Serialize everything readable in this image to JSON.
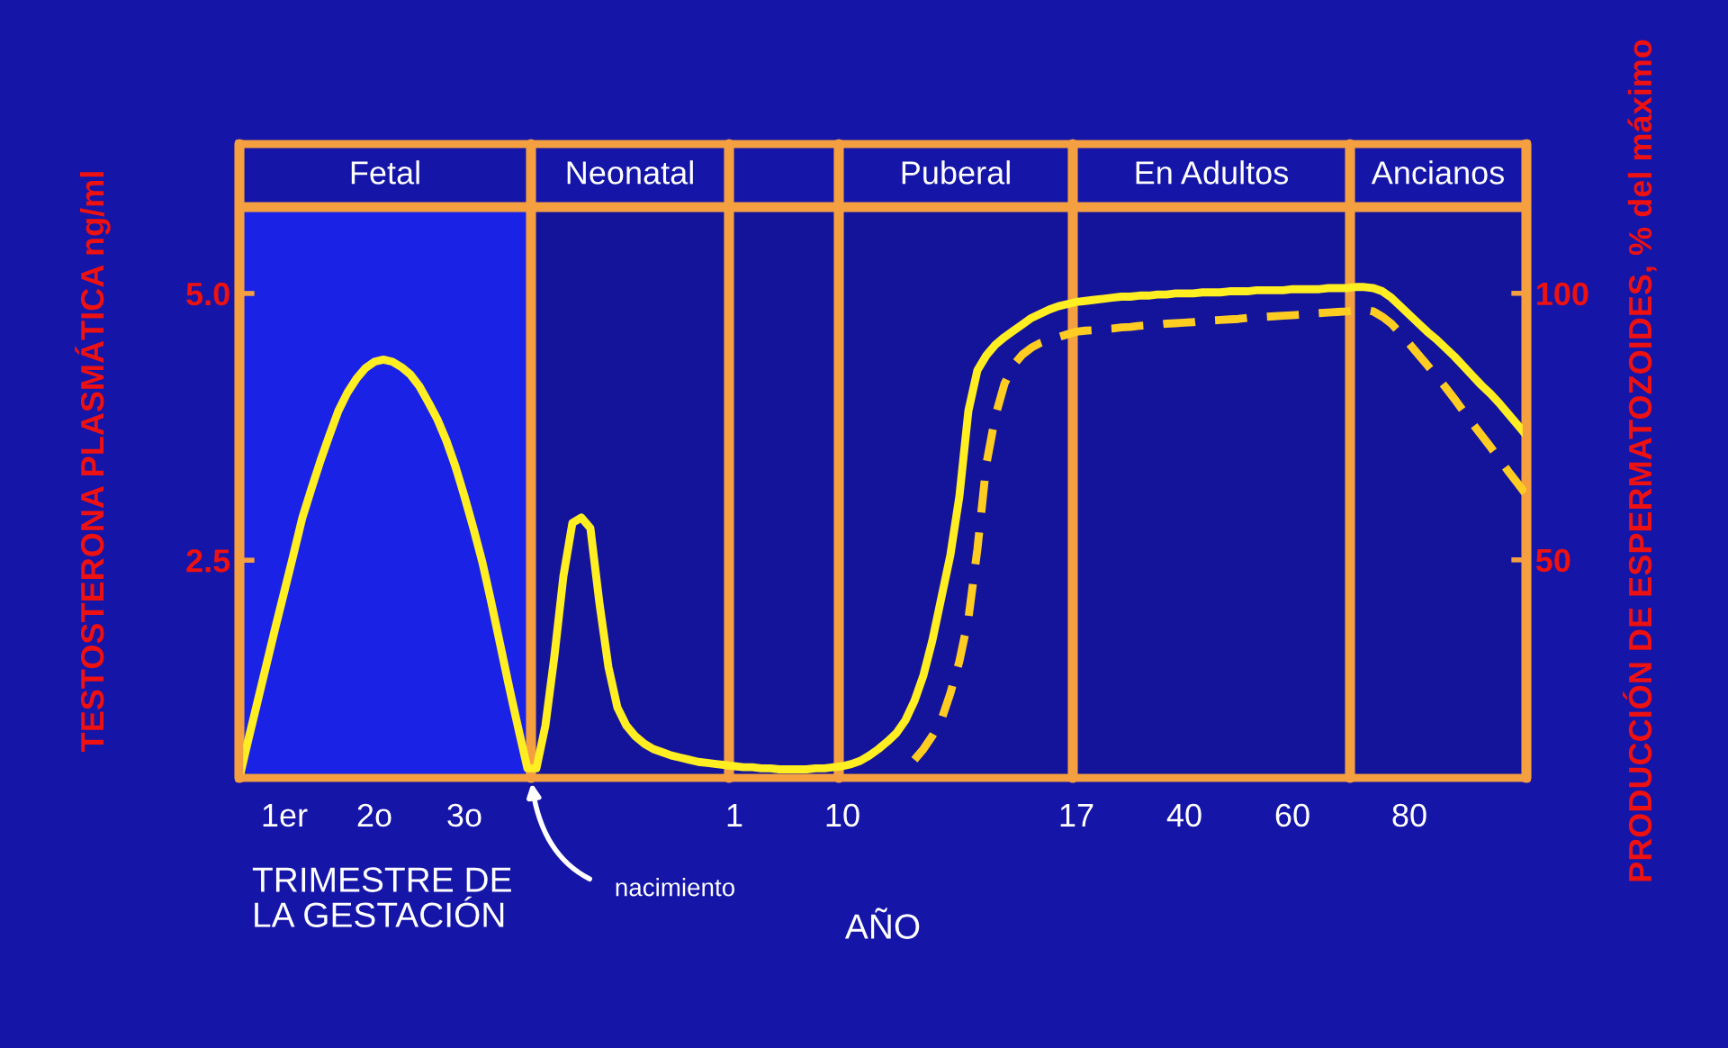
{
  "chart_data": {
    "type": "line",
    "xlabel": "AÑO",
    "ylabel": "TESTOSTERONA PLASMÁTICA ng/ml",
    "y2label": "PRODUCCIÓN DE ESPERMATOZOIDES, % del máximo",
    "categories": [
      null,
      null,
      null,
      null,
      null,
      "1er",
      null,
      null,
      null,
      null,
      null,
      null,
      null,
      null,
      null,
      "2o",
      null,
      null,
      null,
      null,
      null,
      null,
      null,
      null,
      null,
      "3o",
      null,
      null,
      null,
      null,
      null,
      null,
      null,
      null,
      null,
      null,
      null,
      null,
      null,
      null,
      null,
      null,
      null,
      null,
      null,
      null,
      null,
      null,
      null,
      null,
      null,
      null,
      null,
      null,
      null,
      "1",
      null,
      null,
      null,
      null,
      null,
      null,
      null,
      null,
      null,
      null,
      null,
      "10",
      null,
      null,
      null,
      null,
      null,
      null,
      null,
      null,
      null,
      null,
      null,
      null,
      null,
      null,
      null,
      null,
      null,
      null,
      null,
      null,
      null,
      null,
      null,
      null,
      null,
      "17",
      null,
      null,
      null,
      null,
      null,
      null,
      null,
      null,
      null,
      null,
      null,
      "40",
      null,
      null,
      null,
      null,
      null,
      null,
      null,
      null,
      null,
      null,
      null,
      "60",
      null,
      null,
      null,
      null,
      null,
      null,
      null,
      null,
      null,
      null,
      null,
      null,
      "80",
      null,
      null,
      null,
      null,
      null,
      null,
      null,
      null,
      null,
      null,
      null,
      null,
      null
    ],
    "ylim": [
      0.46,
      6.4
    ],
    "yticks": [
      {
        "value": 2.5,
        "label": "2.5"
      },
      {
        "value": 5.0,
        "label": "5.0"
      }
    ],
    "y2lim": [
      9.1,
      128.0
    ],
    "y2ticks": [
      50,
      100
    ],
    "grid": false,
    "legend": false,
    "marker": "none",
    "series": [
      {
        "color": "#ffee22",
        "line_style": "solid",
        "values": [
          0.46,
          0.82,
          1.17,
          1.52,
          1.87,
          2.21,
          2.55,
          2.9,
          3.17,
          3.43,
          3.67,
          3.9,
          4.07,
          4.2,
          4.3,
          4.36,
          4.38,
          4.36,
          4.31,
          4.24,
          4.13,
          3.98,
          3.82,
          3.62,
          3.38,
          3.1,
          2.8,
          2.48,
          2.1,
          1.7,
          1.3,
          0.92,
          0.55,
          0.55,
          0.95,
          1.6,
          2.35,
          2.85,
          2.9,
          2.8,
          2.1,
          1.5,
          1.12,
          0.95,
          0.85,
          0.78,
          0.73,
          0.7,
          0.67,
          0.65,
          0.63,
          0.61,
          0.6,
          0.59,
          0.58,
          0.57,
          0.56,
          0.56,
          0.55,
          0.55,
          0.54,
          0.54,
          0.54,
          0.54,
          0.55,
          0.55,
          0.56,
          0.57,
          0.59,
          0.62,
          0.67,
          0.73,
          0.8,
          0.88,
          1.0,
          1.18,
          1.42,
          1.75,
          2.15,
          2.55,
          3.1,
          3.9,
          4.28,
          4.42,
          4.52,
          4.59,
          4.65,
          4.71,
          4.77,
          4.81,
          4.85,
          4.88,
          4.9,
          4.92,
          4.93,
          4.94,
          4.95,
          4.96,
          4.97,
          4.97,
          4.98,
          4.98,
          4.99,
          4.99,
          5.0,
          5.0,
          5.0,
          5.01,
          5.01,
          5.01,
          5.02,
          5.02,
          5.02,
          5.03,
          5.03,
          5.03,
          5.03,
          5.04,
          5.04,
          5.04,
          5.04,
          5.05,
          5.05,
          5.05,
          5.06,
          5.06,
          5.05,
          5.02,
          4.96,
          4.88,
          4.8,
          4.72,
          4.64,
          4.57,
          4.49,
          4.41,
          4.32,
          4.23,
          4.14,
          4.06,
          3.97,
          3.87,
          3.77,
          3.67
        ]
      },
      {
        "color": "#ffcc22",
        "line_style": "dashed",
        "axis": "y2",
        "values": [
          null,
          null,
          null,
          null,
          null,
          null,
          null,
          null,
          null,
          null,
          null,
          null,
          null,
          null,
          null,
          null,
          null,
          null,
          null,
          null,
          null,
          null,
          null,
          null,
          null,
          null,
          null,
          null,
          null,
          null,
          null,
          null,
          null,
          null,
          null,
          null,
          null,
          null,
          null,
          null,
          null,
          null,
          null,
          null,
          null,
          null,
          null,
          null,
          null,
          null,
          null,
          null,
          null,
          null,
          null,
          null,
          null,
          null,
          null,
          null,
          null,
          null,
          null,
          null,
          null,
          null,
          null,
          null,
          null,
          null,
          null,
          null,
          null,
          null,
          null,
          12.5,
          14.5,
          17,
          20,
          25,
          31,
          39,
          52,
          68,
          77,
          83,
          86.5,
          88.5,
          89.8,
          90.7,
          91.3,
          91.8,
          92.3,
          92.8,
          93.0,
          93.1,
          93.3,
          93.4,
          93.6,
          93.7,
          93.9,
          94.0,
          94.1,
          94.3,
          94.4,
          94.5,
          94.6,
          94.8,
          94.9,
          95.0,
          95.1,
          95.2,
          95.4,
          95.5,
          95.6,
          95.7,
          95.8,
          95.9,
          96.0,
          96.2,
          96.3,
          96.4,
          96.5,
          96.6,
          96.8,
          96.9,
          96.6,
          95.6,
          94.3,
          92.5,
          90.5,
          88.5,
          86.5,
          84.5,
          82.4,
          80.2,
          77.9,
          75.6,
          73.4,
          71.2,
          68.9,
          66.6,
          64.4,
          62.2
        ]
      }
    ],
    "annotations": [
      "TRIMESTRE DE\nLA GESTACIÓN",
      "nacimiento",
      "Fetal",
      "Neonatal",
      "Puberal",
      "En Adultos",
      "Ancianos"
    ]
  }
}
